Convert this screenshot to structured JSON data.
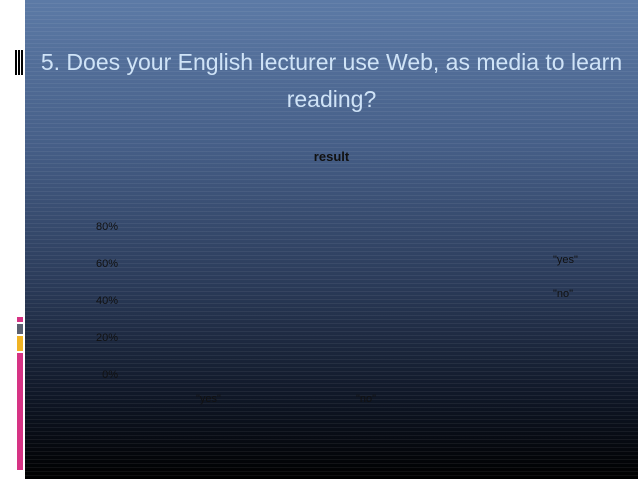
{
  "slide": {
    "title": "5. Does your English lecturer use Web, as media to learn reading?",
    "title_color": "#cfe3f7"
  },
  "chart_data": {
    "type": "bar",
    "title": "result",
    "categories": [
      "\"yes\"",
      "\"no\""
    ],
    "series": [
      {
        "name": "\"yes\"",
        "values": [
          null,
          null
        ]
      },
      {
        "name": "\"no\"",
        "values": [
          null,
          null
        ]
      }
    ],
    "y_ticks": [
      "0%",
      "20%",
      "40%",
      "60%",
      "80%"
    ],
    "ylim": [
      0,
      80
    ],
    "legend": [
      "\"yes\"",
      "\"no\""
    ],
    "legend_position": "right",
    "grid": false
  }
}
